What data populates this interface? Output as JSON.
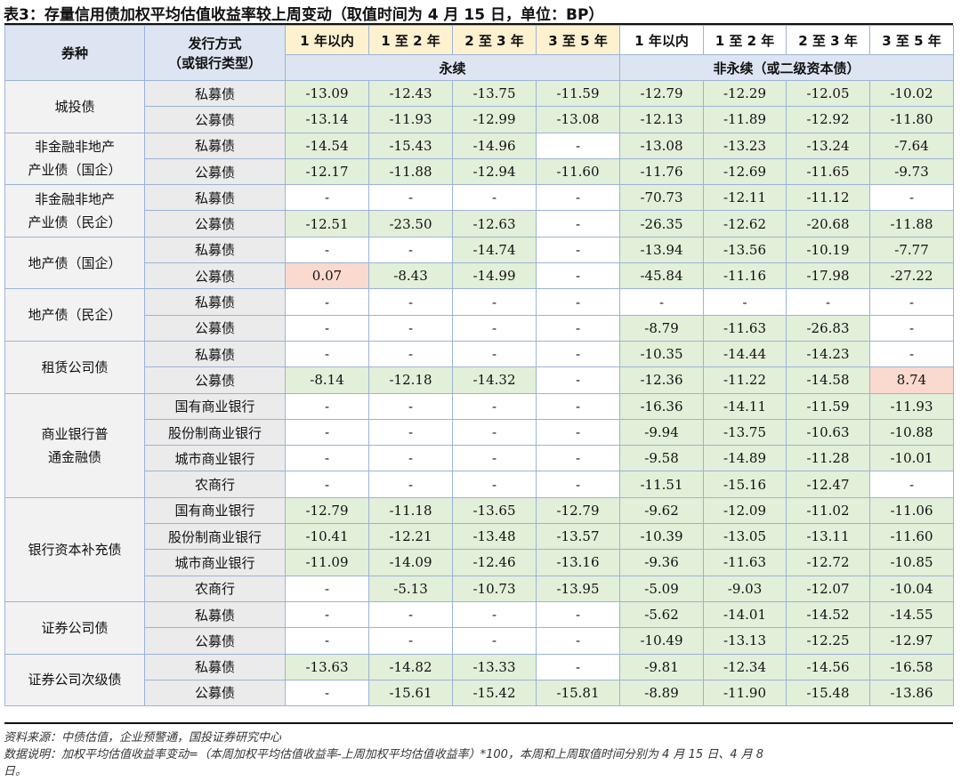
{
  "title": "表3：存量信用债加权平均估值收益率较上周变动（取值时间为 4 月 15 日，单位：BP）",
  "header": {
    "col_category": "券种",
    "col_method": "发行方式\n（或银行类型）",
    "col_method_line1": "发行方式",
    "col_method_line2": "（或银行类型）",
    "terms": [
      "1 年以内",
      "1 至 2 年",
      "2 至 3 年",
      "3 至 5 年",
      "1 年以内",
      "1 至 2 年",
      "2 至 3 年",
      "3 至 5 年"
    ],
    "group_perpetual": "永续",
    "group_non_perpetual": "非永续（或二级资本债）"
  },
  "colors": {
    "decrease": "#e2efd9",
    "increase": "#fad9ce",
    "header_blue": "#dde5f2",
    "header_yellow": "#fdf1d0",
    "border": "#9bb3d6"
  },
  "groups": [
    {
      "category": "城投债",
      "rows": [
        {
          "method": "私募债",
          "values": [
            "-13.09",
            "-12.43",
            "-13.75",
            "-11.59",
            "-12.79",
            "-12.29",
            "-12.05",
            "-10.02"
          ]
        },
        {
          "method": "公募债",
          "values": [
            "-13.14",
            "-11.93",
            "-12.99",
            "-13.08",
            "-12.13",
            "-11.89",
            "-12.92",
            "-11.80"
          ]
        }
      ]
    },
    {
      "category": "非金融非地产产业债（国企）",
      "rows": [
        {
          "method": "私募债",
          "values": [
            "-14.54",
            "-15.43",
            "-14.96",
            "-",
            "-13.08",
            "-13.23",
            "-13.24",
            "-7.64"
          ]
        },
        {
          "method": "公募债",
          "values": [
            "-12.17",
            "-11.88",
            "-12.94",
            "-11.60",
            "-11.76",
            "-12.69",
            "-11.65",
            "-9.73"
          ]
        }
      ]
    },
    {
      "category": "非金融非地产产业债（民企）",
      "rows": [
        {
          "method": "私募债",
          "values": [
            "-",
            "-",
            "-",
            "-",
            "-70.73",
            "-12.11",
            "-11.12",
            "-"
          ]
        },
        {
          "method": "公募债",
          "values": [
            "-12.51",
            "-23.50",
            "-12.63",
            "-",
            "-26.35",
            "-12.62",
            "-20.68",
            "-11.88"
          ]
        }
      ]
    },
    {
      "category": "地产债（国企）",
      "rows": [
        {
          "method": "私募债",
          "values": [
            "-",
            "-",
            "-14.74",
            "-",
            "-13.94",
            "-13.56",
            "-10.19",
            "-7.77"
          ]
        },
        {
          "method": "公募债",
          "values": [
            "0.07",
            "-8.43",
            "-14.99",
            "-",
            "-45.84",
            "-11.16",
            "-17.98",
            "-27.22"
          ]
        }
      ]
    },
    {
      "category": "地产债（民企）",
      "rows": [
        {
          "method": "私募债",
          "values": [
            "-",
            "-",
            "-",
            "-",
            "-",
            "-",
            "-",
            "-"
          ]
        },
        {
          "method": "公募债",
          "values": [
            "-",
            "-",
            "-",
            "-",
            "-8.79",
            "-11.63",
            "-26.83",
            "-"
          ]
        }
      ]
    },
    {
      "category": "租赁公司债",
      "rows": [
        {
          "method": "私募债",
          "values": [
            "-",
            "-",
            "-",
            "-",
            "-10.35",
            "-14.44",
            "-14.23",
            "-"
          ]
        },
        {
          "method": "公募债",
          "values": [
            "-8.14",
            "-12.18",
            "-14.32",
            "-",
            "-12.36",
            "-11.22",
            "-14.58",
            "8.74"
          ]
        }
      ]
    },
    {
      "category": "商业银行普通金融债",
      "rows": [
        {
          "method": "国有商业银行",
          "values": [
            "-",
            "-",
            "-",
            "-",
            "-16.36",
            "-14.11",
            "-11.59",
            "-11.93"
          ]
        },
        {
          "method": "股份制商业银行",
          "values": [
            "-",
            "-",
            "-",
            "-",
            "-9.94",
            "-13.75",
            "-10.63",
            "-10.88"
          ]
        },
        {
          "method": "城市商业银行",
          "values": [
            "-",
            "-",
            "-",
            "-",
            "-9.58",
            "-14.89",
            "-11.28",
            "-10.01"
          ]
        },
        {
          "method": "农商行",
          "values": [
            "-",
            "-",
            "-",
            "-",
            "-11.51",
            "-15.16",
            "-12.47",
            "-"
          ]
        }
      ]
    },
    {
      "category": "银行资本补充债",
      "rows": [
        {
          "method": "国有商业银行",
          "values": [
            "-12.79",
            "-11.18",
            "-13.65",
            "-12.79",
            "-9.62",
            "-12.09",
            "-11.02",
            "-11.06"
          ]
        },
        {
          "method": "股份制商业银行",
          "values": [
            "-10.41",
            "-12.21",
            "-13.48",
            "-13.57",
            "-10.39",
            "-13.05",
            "-13.11",
            "-11.60"
          ]
        },
        {
          "method": "城市商业银行",
          "values": [
            "-11.09",
            "-14.09",
            "-12.46",
            "-13.16",
            "-9.36",
            "-11.63",
            "-12.72",
            "-10.85"
          ]
        },
        {
          "method": "农商行",
          "values": [
            "-",
            "-5.13",
            "-10.73",
            "-13.95",
            "-5.09",
            "-9.03",
            "-12.07",
            "-10.04"
          ]
        }
      ]
    },
    {
      "category": "证券公司债",
      "rows": [
        {
          "method": "私募债",
          "values": [
            "-",
            "-",
            "-",
            "-",
            "-5.62",
            "-14.01",
            "-14.52",
            "-14.55"
          ]
        },
        {
          "method": "公募债",
          "values": [
            "-",
            "-",
            "-",
            "-",
            "-10.49",
            "-13.13",
            "-12.25",
            "-12.97"
          ]
        }
      ]
    },
    {
      "category": "证券公司次级债",
      "rows": [
        {
          "method": "私募债",
          "values": [
            "-13.63",
            "-14.82",
            "-13.33",
            "-",
            "-9.81",
            "-12.34",
            "-14.56",
            "-16.58"
          ]
        },
        {
          "method": "公募债",
          "values": [
            "-",
            "-15.61",
            "-15.42",
            "-15.81",
            "-8.89",
            "-11.90",
            "-15.48",
            "-13.86"
          ]
        }
      ]
    }
  ],
  "footnotes": {
    "source": "资料来源：中债估值，企业预警通，国投证券研究中心",
    "note_line1": "数据说明：加权平均估值收益率变动=（本周加权平均估值收益率-上周加权平均估值收益率）*100，本周和上周取值时间分别为 4 月 15 日、4 月 8",
    "note_line2": "日。"
  }
}
